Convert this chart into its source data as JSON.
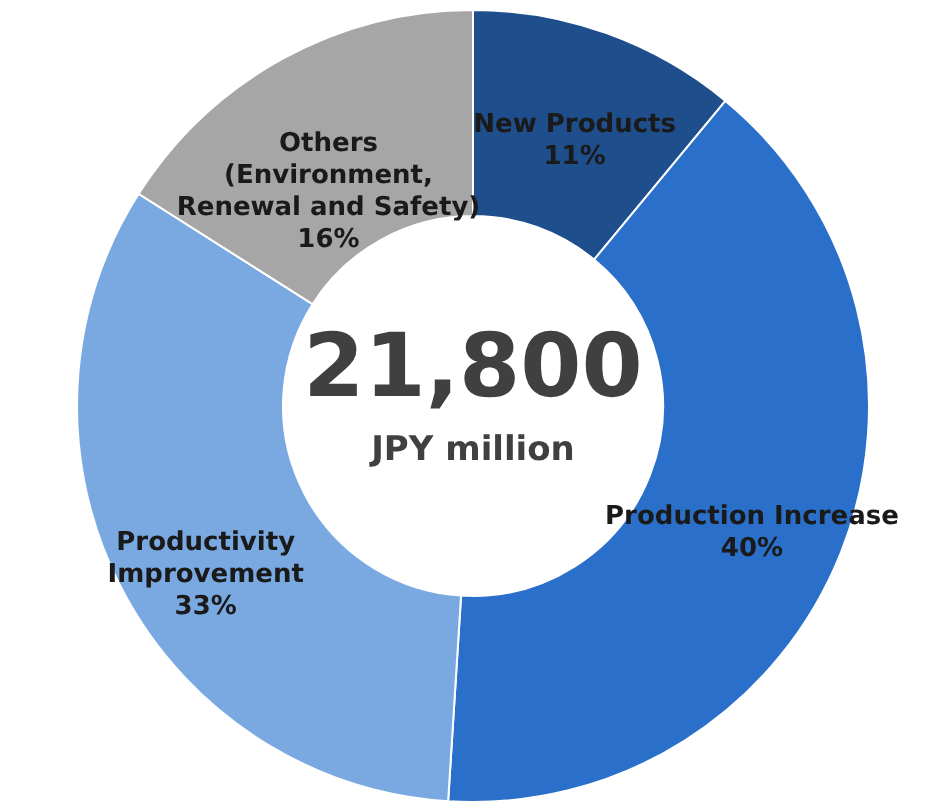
{
  "chart_data": {
    "type": "donut",
    "categories": [
      "New Products",
      "Production Increase",
      "Productivity Improvement",
      "Others (Environment, Renewal and Safety)"
    ],
    "values": [
      11,
      40,
      33,
      16
    ],
    "colors": [
      "#1f4e8c",
      "#2a6fc9",
      "#7aa9e2",
      "#a6a6a6"
    ],
    "value_labels": [
      "11%",
      "40%",
      "33%",
      "16%"
    ],
    "annotations": [
      "21,800",
      "JPY million"
    ]
  }
}
